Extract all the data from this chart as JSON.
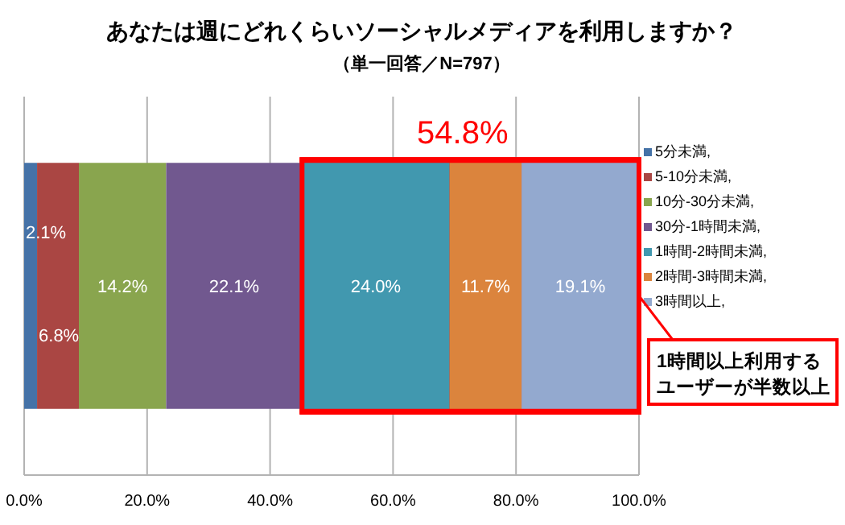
{
  "chart_data": {
    "type": "bar",
    "orientation": "horizontal",
    "stacked": true,
    "title": "あなたは週にどれくらいソーシャルメディアを利用しますか？",
    "subtitle": "（単一回答／N=797）",
    "categories": [
      null
    ],
    "series": [
      {
        "name": "5分未満,",
        "color": "#4572a7",
        "values": [
          2.1
        ],
        "value_labels": [
          "2.1%"
        ]
      },
      {
        "name": "5-10分未満,",
        "color": "#aa4643",
        "values": [
          6.8
        ],
        "value_labels": [
          "6.8%"
        ]
      },
      {
        "name": "10分-30分未満,",
        "color": "#89a54e",
        "values": [
          14.2
        ],
        "value_labels": [
          "14.2%"
        ]
      },
      {
        "name": "30分-1時間未満,",
        "color": "#71588f",
        "values": [
          22.1
        ],
        "value_labels": [
          "22.1%"
        ]
      },
      {
        "name": "1時間-2時間未満,",
        "color": "#4198af",
        "values": [
          24.0
        ],
        "value_labels": [
          "24.0%"
        ]
      },
      {
        "name": "2時間-3時間未満,",
        "color": "#db843d",
        "values": [
          11.7
        ],
        "value_labels": [
          "11.7%"
        ]
      },
      {
        "name": "3時間以上,",
        "color": "#93a9cf",
        "values": [
          19.1
        ],
        "value_labels": [
          "19.1%"
        ]
      }
    ],
    "xlim": [
      0,
      100
    ],
    "xticks": [
      {
        "value": 0,
        "label": "0.0%"
      },
      {
        "value": 20,
        "label": "20.0%"
      },
      {
        "value": 40,
        "label": "40.0%"
      },
      {
        "value": 60,
        "label": "60.0%"
      },
      {
        "value": 80,
        "label": "80.0%"
      },
      {
        "value": 100,
        "label": "100.0%"
      }
    ],
    "grid": "x",
    "legend": "right",
    "bands": [
      {
        "axis": "x",
        "from": 45.2,
        "to": 100,
        "label": "54.8%",
        "color": "#ff0000"
      }
    ],
    "annotations": [
      "1時間以上利用する",
      "ユーザーが半数以上"
    ]
  }
}
